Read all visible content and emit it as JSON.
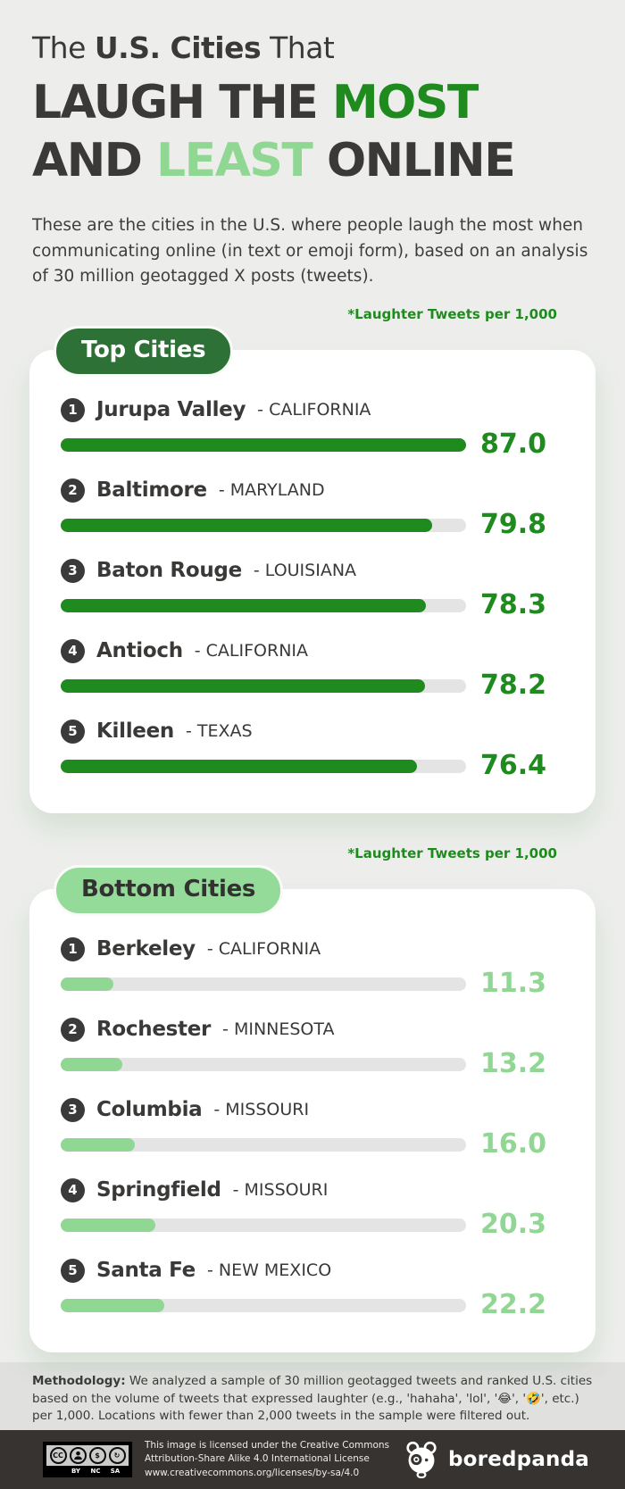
{
  "colors": {
    "page_bg": "#edeeec",
    "ink": "#3b3937",
    "green": "#1f8b1f",
    "light_green": "#90d794",
    "badge_dark_green": "#2e7137",
    "track_gray": "#e4e4e4",
    "footer_bg": "#363330"
  },
  "title": {
    "l1a": "The ",
    "l1b": "U.S. Cities",
    "l1c": " That",
    "l2a": "LAUGH THE ",
    "l2b": "MOST",
    "l3a": "AND ",
    "l3b": "LEAST",
    "l3c": " ONLINE"
  },
  "intro": "These are the cities in the U.S. where people laugh the most when communicating online (in text or emoji form), based on an analysis of 30 million geotagged X posts (tweets).",
  "sections": {
    "top": {
      "badge": "Top Cities",
      "note": "*Laughter Tweets per 1,000",
      "rows": [
        {
          "rank": "1",
          "city": "Jurupa Valley",
          "state": "- CALIFORNIA",
          "value": "87.0"
        },
        {
          "rank": "2",
          "city": "Baltimore",
          "state": "- MARYLAND",
          "value": "79.8"
        },
        {
          "rank": "3",
          "city": "Baton Rouge",
          "state": "- LOUISIANA",
          "value": "78.3"
        },
        {
          "rank": "4",
          "city": "Antioch",
          "state": "- CALIFORNIA",
          "value": "78.2"
        },
        {
          "rank": "5",
          "city": "Killeen",
          "state": "- TEXAS",
          "value": "76.4"
        }
      ]
    },
    "bottom": {
      "badge": "Bottom Cities",
      "note": "*Laughter Tweets per 1,000",
      "rows": [
        {
          "rank": "1",
          "city": "Berkeley",
          "state": "- CALIFORNIA",
          "value": "11.3"
        },
        {
          "rank": "2",
          "city": "Rochester",
          "state": "- MINNESOTA",
          "value": "13.2"
        },
        {
          "rank": "3",
          "city": "Columbia",
          "state": "- MISSOURI",
          "value": "16.0"
        },
        {
          "rank": "4",
          "city": "Springfield",
          "state": "- MISSOURI",
          "value": "20.3"
        },
        {
          "rank": "5",
          "city": "Santa Fe",
          "state": "- NEW MEXICO",
          "value": "22.2"
        }
      ]
    }
  },
  "chart_data": [
    {
      "type": "bar",
      "orientation": "horizontal",
      "title": "Top Cities",
      "xlabel": "*Laughter Tweets per 1,000",
      "categories": [
        "Jurupa Valley - CALIFORNIA",
        "Baltimore - MARYLAND",
        "Baton Rouge - LOUISIANA",
        "Antioch - CALIFORNIA",
        "Killeen - TEXAS"
      ],
      "values": [
        87.0,
        79.8,
        78.3,
        78.2,
        76.4
      ],
      "xlim": [
        0,
        87
      ],
      "bar_color": "#1f8b1f",
      "grid": false,
      "data_labels": true
    },
    {
      "type": "bar",
      "orientation": "horizontal",
      "title": "Bottom Cities",
      "xlabel": "*Laughter Tweets per 1,000",
      "categories": [
        "Berkeley - CALIFORNIA",
        "Rochester - MINNESOTA",
        "Columbia - MISSOURI",
        "Springfield - MISSOURI",
        "Santa Fe - NEW MEXICO"
      ],
      "values": [
        11.3,
        13.2,
        16.0,
        20.3,
        22.2
      ],
      "xlim": [
        0,
        87
      ],
      "bar_color": "#90d794",
      "grid": false,
      "data_labels": true
    }
  ],
  "methodology": {
    "label": "Methodology:",
    "text": " We analyzed a sample of 30 million geotagged tweets and ranked U.S. cities based on the volume of tweets that expressed laughter (e.g., 'hahaha', 'lol', '😂', '🤣', etc.) per 1,000. Locations with fewer than 2,000 tweets in the sample were filtered out."
  },
  "footer": {
    "cc_text": "CC",
    "cc_nc_glyph": "$",
    "cc_sa_glyph": "↻",
    "cc_labels": [
      "",
      "BY",
      "NC",
      "SA"
    ],
    "license_line1": "This image is licensed under the Creative Commons",
    "license_line2": "Attribution-Share Alike 4.0 International License",
    "license_line3": "www.creativecommons.org/licenses/by-sa/4.0",
    "brand": "boredpanda"
  }
}
